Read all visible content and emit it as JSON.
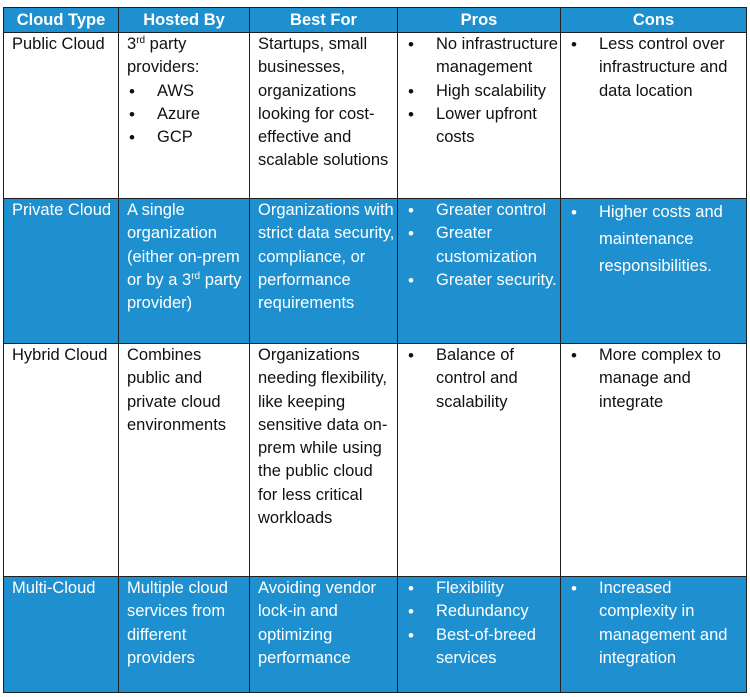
{
  "table": {
    "headers": [
      "Cloud Type",
      "Hosted By",
      "Best For",
      "Pros",
      "Cons"
    ],
    "rows": [
      {
        "type": "Public Cloud",
        "hosted_by": {
          "prefix": "3",
          "sup": "rd",
          "suffix": " party providers:",
          "items": [
            "AWS",
            "Azure",
            "GCP"
          ]
        },
        "best_for": "Startups, small businesses, organizations looking for cost-effective and scalable solutions",
        "pros": [
          "No infrastructure management",
          "High scalability",
          "Lower upfront costs"
        ],
        "cons": [
          "Less control over infrastructure and data location"
        ]
      },
      {
        "type": "Private Cloud",
        "hosted_by": {
          "prefix": "A single organization (either on-prem or by a 3",
          "sup": "rd",
          "suffix": " party provider)"
        },
        "best_for": "Organizations with strict data security, compliance, or performance requirements",
        "pros": [
          "Greater control",
          "Greater customization",
          "Greater security."
        ],
        "cons": [
          "Higher costs and maintenance responsibilities."
        ]
      },
      {
        "type": "Hybrid Cloud",
        "hosted_by": {
          "prefix": "Combines public and private cloud environments"
        },
        "best_for": "Organizations needing flexibility, like keeping sensitive data on-prem while using the public cloud for less critical workloads",
        "pros": [
          "Balance of control and scalability"
        ],
        "cons": [
          "More complex to manage and integrate"
        ]
      },
      {
        "type": "Multi-Cloud",
        "hosted_by": {
          "prefix": "Multiple cloud services from different providers"
        },
        "best_for": "Avoiding vendor lock-in and optimizing performance",
        "pros": [
          "Flexibility",
          "Redundancy",
          "Best-of-breed services"
        ],
        "cons": [
          "Increased complexity in management and integration"
        ]
      }
    ]
  },
  "colors": {
    "accent": "#1e90d0",
    "border": "#1f1f1f",
    "text": "#111111",
    "header_text": "#ffffff"
  }
}
